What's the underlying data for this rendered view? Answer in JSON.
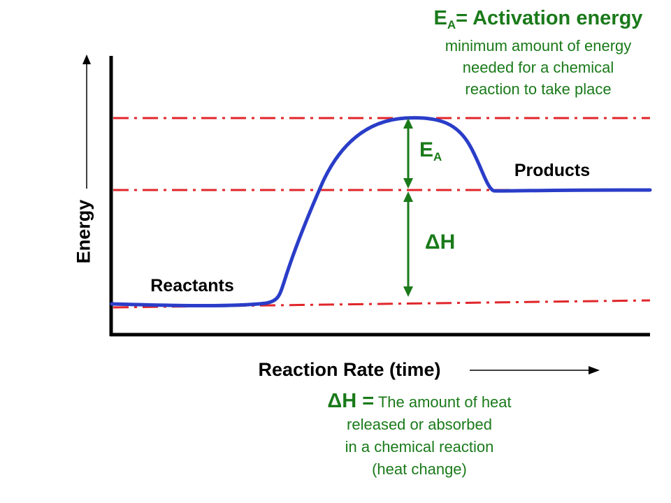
{
  "activation_energy": {
    "symbol": "E",
    "subscript": "A",
    "title_suffix": "= Activation energy",
    "description": [
      "minimum amount of energy",
      "needed for a chemical",
      "reaction to take place"
    ]
  },
  "labels": {
    "ea_symbol": "E",
    "ea_subscript": "A",
    "delta_h": "ΔH",
    "products": "Products",
    "reactants": "Reactants",
    "x_axis": "Reaction Rate (time)",
    "y_axis": "Energy"
  },
  "heat_change": {
    "symbol": "ΔH =",
    "lines": [
      "The amount of heat",
      "released or absorbed",
      "in a chemical reaction",
      "(heat change)"
    ]
  },
  "colors": {
    "curve": "#2a3dc8",
    "reference_lines": "#e0262a",
    "arrows": "#1a7a1a",
    "text_green": "#1a7a1a",
    "axes": "#000000"
  }
}
